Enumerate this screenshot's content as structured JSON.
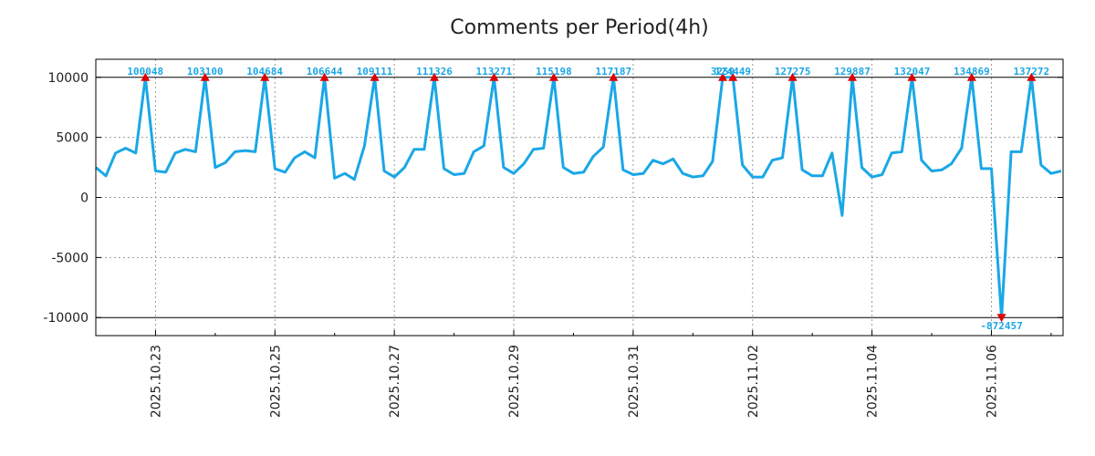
{
  "chart_data": {
    "type": "line",
    "title": "Comments per Period(4h)",
    "xlabel": "",
    "ylabel": "",
    "x_unit": "days since 2025.10.22",
    "xlim": [
      0.0,
      16.2
    ],
    "ylim": [
      -11500,
      11500
    ],
    "y_ticks": [
      10000,
      5000,
      0,
      -5000,
      -10000
    ],
    "y_tick_labels": [
      "10000",
      "5000",
      "0",
      "-5000",
      "-10000"
    ],
    "x_ticks": [
      1,
      3,
      5,
      7,
      9,
      11,
      13,
      15
    ],
    "x_tick_labels": [
      "2025.10.23",
      "2025.10.25",
      "2025.10.27",
      "2025.10.29",
      "2025.10.31",
      "2025.11.02",
      "2025.11.04",
      "2025.11.06"
    ],
    "grid": true,
    "clip_lines": [
      10000,
      -10000
    ],
    "series": [
      {
        "name": "comments",
        "x": [
          0.0,
          0.17,
          0.33,
          0.5,
          0.67,
          0.83,
          1.0,
          1.17,
          1.33,
          1.5,
          1.67,
          1.83,
          2.0,
          2.17,
          2.33,
          2.5,
          2.67,
          2.83,
          3.0,
          3.17,
          3.33,
          3.5,
          3.67,
          3.83,
          4.0,
          4.17,
          4.33,
          4.5,
          4.67,
          4.83,
          5.0,
          5.17,
          5.33,
          5.5,
          5.67,
          5.83,
          6.0,
          6.17,
          6.33,
          6.5,
          6.67,
          6.83,
          7.0,
          7.17,
          7.33,
          7.5,
          7.67,
          7.83,
          8.0,
          8.17,
          8.33,
          8.5,
          8.67,
          8.83,
          9.0,
          9.17,
          9.33,
          9.5,
          9.67,
          9.83,
          10.0,
          10.17,
          10.33,
          10.5,
          10.67,
          10.83,
          11.0,
          11.17,
          11.33,
          11.5,
          11.67,
          11.83,
          12.0,
          12.17,
          12.33,
          12.5,
          12.67,
          12.83,
          13.0,
          13.17,
          13.33,
          13.5,
          13.67,
          13.83,
          14.0,
          14.17,
          14.33,
          14.5,
          14.67,
          14.83,
          15.0,
          15.17,
          15.33,
          15.5,
          15.67,
          15.83,
          16.0,
          16.17
        ],
        "values": [
          2500,
          1800,
          3700,
          4100,
          3700,
          10000,
          2200,
          2100,
          3700,
          4000,
          3800,
          10000,
          2500,
          2900,
          3800,
          3900,
          3800,
          10000,
          2400,
          2100,
          3300,
          3800,
          3300,
          10000,
          1600,
          2000,
          1500,
          4300,
          10000,
          2200,
          1700,
          2500,
          4000,
          4000,
          10000,
          2400,
          1900,
          2000,
          3800,
          4300,
          10000,
          2500,
          2000,
          2800,
          4000,
          4100,
          10000,
          2500,
          2000,
          2100,
          3400,
          4200,
          10000,
          2300,
          1900,
          2000,
          3100,
          2800,
          3200,
          2000,
          1700,
          1800,
          3000,
          10000,
          10000,
          2700,
          1700,
          1700,
          3100,
          3300,
          10000,
          2300,
          1800,
          1800,
          3700,
          -1500,
          10000,
          2500,
          1700,
          1900,
          3700,
          3800,
          10000,
          3100,
          2200,
          2300,
          2800,
          4100,
          10000,
          2400,
          2400,
          -10000,
          3800,
          3800,
          10000,
          2700,
          2000,
          2200
        ]
      }
    ],
    "annotations": [
      {
        "x": 0.83,
        "y": 10000,
        "label": "100048",
        "marker": "up"
      },
      {
        "x": 1.83,
        "y": 10000,
        "label": "103100",
        "marker": "up"
      },
      {
        "x": 2.83,
        "y": 10000,
        "label": "104684",
        "marker": "up"
      },
      {
        "x": 3.83,
        "y": 10000,
        "label": "106644",
        "marker": "up"
      },
      {
        "x": 4.67,
        "y": 10000,
        "label": "109111",
        "marker": "up"
      },
      {
        "x": 5.67,
        "y": 10000,
        "label": "111326",
        "marker": "up"
      },
      {
        "x": 6.67,
        "y": 10000,
        "label": "113271",
        "marker": "up"
      },
      {
        "x": 7.67,
        "y": 10000,
        "label": "115198",
        "marker": "up"
      },
      {
        "x": 8.67,
        "y": 10000,
        "label": "117187",
        "marker": "up"
      },
      {
        "x": 10.5,
        "y": 10000,
        "label": "3259",
        "marker": "up"
      },
      {
        "x": 10.67,
        "y": 10000,
        "label": "124449",
        "marker": "up"
      },
      {
        "x": 11.67,
        "y": 10000,
        "label": "127275",
        "marker": "up"
      },
      {
        "x": 12.67,
        "y": 10000,
        "label": "129887",
        "marker": "up"
      },
      {
        "x": 13.67,
        "y": 10000,
        "label": "132047",
        "marker": "up"
      },
      {
        "x": 14.67,
        "y": 10000,
        "label": "134869",
        "marker": "up"
      },
      {
        "x": 15.17,
        "y": -10000,
        "label": "-872457",
        "marker": "down"
      },
      {
        "x": 15.67,
        "y": 10000,
        "label": "137272",
        "marker": "up"
      }
    ]
  },
  "colors": {
    "line": "#1aa7e6",
    "marker": "#e00000",
    "label": "#1aa7e6",
    "grid": "#9a9a9a",
    "axis": "#000000"
  }
}
